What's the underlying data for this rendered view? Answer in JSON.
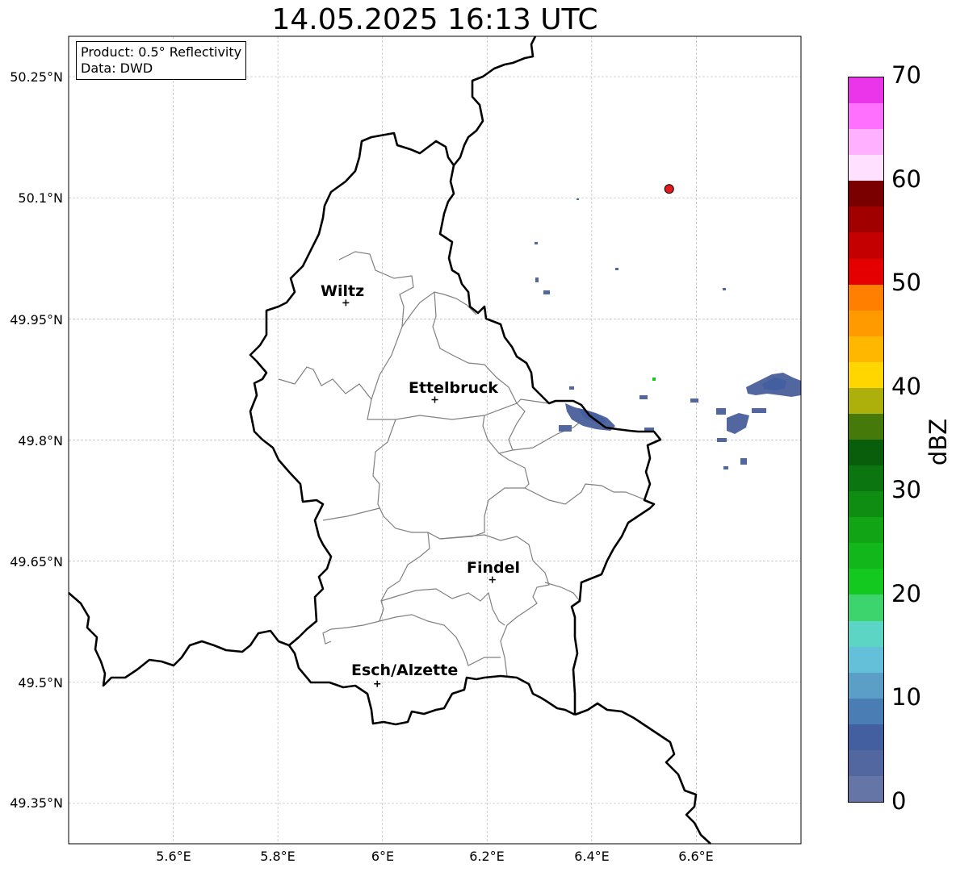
{
  "title": "14.05.2025 16:13 UTC",
  "info": {
    "product": "Product: 0.5° Reflectivity",
    "source": "Data: DWD"
  },
  "axes": {
    "lat_ticks": [
      "50.25°N",
      "50.1°N",
      "49.95°N",
      "49.8°N",
      "49.65°N",
      "49.5°N",
      "49.35°N"
    ],
    "lon_ticks": [
      "5.6°E",
      "5.8°E",
      "6°E",
      "6.2°E",
      "6.4°E",
      "6.6°E"
    ]
  },
  "cities": [
    {
      "name": "Wiltz",
      "lon": 5.93,
      "lat": 49.97
    },
    {
      "name": "Ettelbruck",
      "lon": 6.1,
      "lat": 49.85
    },
    {
      "name": "Findel",
      "lon": 6.21,
      "lat": 49.627
    },
    {
      "name": "Esch/Alzette",
      "lon": 5.99,
      "lat": 49.498
    }
  ],
  "radar_site": {
    "lon": 6.548,
    "lat": 50.111,
    "color": "#e41a1c"
  },
  "colorbar": {
    "label": "dBZ",
    "min": 0,
    "max": 70,
    "ticks": [
      "70",
      "60",
      "50",
      "40",
      "30",
      "20",
      "10",
      "0"
    ],
    "colors_low_to_high": [
      "#6475a6",
      "#5266a0",
      "#445fa0",
      "#4a7db3",
      "#5b9fc6",
      "#64c0d8",
      "#5cd6c4",
      "#3dd46d",
      "#13c920",
      "#12b81b",
      "#11a515",
      "#0e8d12",
      "#0b7610",
      "#095e0b",
      "#457a0a",
      "#adb00a",
      "#ffd600",
      "#ffb700",
      "#ff9a00",
      "#ff7f00",
      "#e50000",
      "#c40000",
      "#a00000",
      "#7a0000",
      "#ffe0ff",
      "#ffb0ff",
      "#ff70ff",
      "#ea35ea"
    ]
  },
  "border_color": "#000000",
  "canton_color": "#808080"
}
